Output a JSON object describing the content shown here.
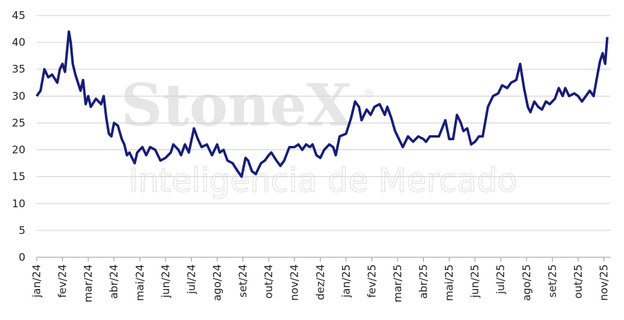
{
  "chart_data": {
    "type": "line",
    "watermark": {
      "brand": "StoneX",
      "registered": "®",
      "subtitle": "Inteligência de Mercado"
    },
    "xlim": [
      0,
      22.15
    ],
    "xticks": [
      {
        "value": 0,
        "label": "jan/24"
      },
      {
        "value": 1,
        "label": "fev/24"
      },
      {
        "value": 2,
        "label": "mar/24"
      },
      {
        "value": 3,
        "label": "abr/24"
      },
      {
        "value": 4,
        "label": "mai/24"
      },
      {
        "value": 5,
        "label": "jun/24"
      },
      {
        "value": 6,
        "label": "jul/24"
      },
      {
        "value": 7,
        "label": "ago/24"
      },
      {
        "value": 8,
        "label": "set/24"
      },
      {
        "value": 9,
        "label": "out/24"
      },
      {
        "value": 10,
        "label": "nov/24"
      },
      {
        "value": 11,
        "label": "dez/24"
      },
      {
        "value": 12,
        "label": "jan/25"
      },
      {
        "value": 13,
        "label": "fev/25"
      },
      {
        "value": 14,
        "label": "mar/25"
      },
      {
        "value": 15,
        "label": "abr/25"
      },
      {
        "value": 16,
        "label": "mai/25"
      },
      {
        "value": 17,
        "label": "jun/25"
      },
      {
        "value": 18,
        "label": "jul/25"
      },
      {
        "value": 19,
        "label": "ago/25"
      },
      {
        "value": 20,
        "label": "set/25"
      },
      {
        "value": 21,
        "label": "out/25"
      },
      {
        "value": 22,
        "label": "nov/25"
      }
    ],
    "ylim": [
      0,
      45
    ],
    "yticks": [
      0,
      5,
      10,
      15,
      20,
      25,
      30,
      35,
      40,
      45
    ],
    "grid": true,
    "series": [
      {
        "color": "#161c78",
        "x": [
          0,
          0.15,
          0.3,
          0.45,
          0.6,
          0.8,
          0.9,
          1.0,
          1.1,
          1.25,
          1.32,
          1.4,
          1.5,
          1.7,
          1.8,
          1.9,
          2.0,
          2.1,
          2.3,
          2.5,
          2.6,
          2.7,
          2.8,
          2.9,
          3.0,
          3.15,
          3.3,
          3.4,
          3.5,
          3.6,
          3.8,
          3.9,
          4.1,
          4.25,
          4.4,
          4.6,
          4.8,
          5.0,
          5.2,
          5.3,
          5.5,
          5.6,
          5.75,
          5.9,
          6.1,
          6.25,
          6.4,
          6.6,
          6.8,
          7.0,
          7.1,
          7.25,
          7.4,
          7.6,
          7.8,
          7.95,
          8.1,
          8.2,
          8.35,
          8.5,
          8.7,
          8.85,
          9.0,
          9.1,
          9.3,
          9.45,
          9.6,
          9.8,
          10.0,
          10.15,
          10.3,
          10.45,
          10.6,
          10.7,
          10.85,
          11.0,
          11.15,
          11.35,
          11.5,
          11.6,
          11.75,
          12.0,
          12.2,
          12.35,
          12.5,
          12.6,
          12.8,
          12.95,
          13.1,
          13.3,
          13.5,
          13.6,
          13.75,
          13.9,
          14.05,
          14.2,
          14.4,
          14.6,
          14.8,
          15.0,
          15.1,
          15.25,
          15.4,
          15.6,
          15.85,
          16.0,
          16.15,
          16.3,
          16.45,
          16.55,
          16.7,
          16.85,
          17.0,
          17.15,
          17.3,
          17.5,
          17.7,
          17.9,
          18.05,
          18.25,
          18.4,
          18.6,
          18.75,
          18.9,
          19.05,
          19.15,
          19.3,
          19.45,
          19.6,
          19.75,
          19.9,
          20.1,
          20.25,
          20.4,
          20.5,
          20.65,
          20.85,
          21.0,
          21.15,
          21.3,
          21.45,
          21.6,
          21.75,
          21.85,
          21.95,
          22.05,
          22.13
        ],
        "values": [
          30,
          31,
          35,
          33.5,
          34,
          32.5,
          35,
          36,
          34.5,
          42,
          40,
          36,
          34,
          31,
          33,
          28.5,
          30,
          28,
          29.5,
          28.5,
          30,
          26,
          23,
          22.5,
          25,
          24.5,
          22,
          21,
          19,
          19.5,
          17.5,
          19.5,
          20.5,
          19,
          20.5,
          20,
          18,
          18.5,
          19.5,
          21,
          20,
          19,
          21,
          19.5,
          24,
          22,
          20.5,
          21,
          19,
          21,
          19.5,
          20,
          18,
          17.5,
          16,
          15,
          18.5,
          18,
          16,
          15.5,
          17.5,
          18,
          19,
          19.5,
          18,
          17,
          18,
          20.5,
          20.5,
          21,
          20,
          21,
          20.5,
          21,
          19,
          18.5,
          20,
          21,
          20.5,
          19,
          22.5,
          23,
          26,
          29,
          28,
          25.5,
          27.5,
          26.5,
          28,
          28.5,
          26.5,
          28,
          26,
          23.5,
          22,
          20.5,
          22.5,
          21.5,
          22.5,
          22,
          21.5,
          22.5,
          22.5,
          22.5,
          25.5,
          22,
          22,
          26.5,
          25,
          23.5,
          24,
          21,
          21.5,
          22.5,
          22.5,
          28,
          30,
          30.5,
          32,
          31.5,
          32.5,
          33,
          36,
          31.5,
          28,
          27,
          29,
          28,
          27.5,
          29,
          28.5,
          29.5,
          31.5,
          30,
          31.5,
          30,
          30.5,
          30,
          29,
          30,
          31,
          30,
          34,
          36.5,
          38,
          36,
          41
        ]
      }
    ]
  }
}
